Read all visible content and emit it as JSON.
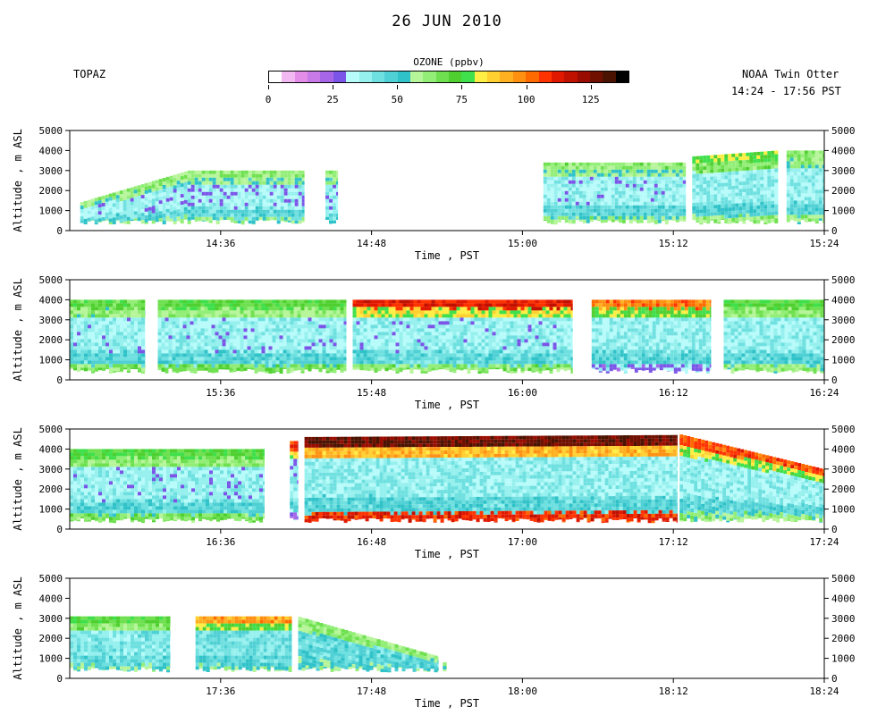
{
  "title": "26 JUN 2010",
  "instrument": "TOPAZ",
  "platform": "NOAA Twin Otter",
  "time_range": "14:24 - 17:56 PST",
  "colorbar": {
    "title": "OZONE (ppbv)",
    "ticks": [
      "0",
      "25",
      "50",
      "75",
      "100",
      "125"
    ],
    "colors": [
      "#ffffff",
      "#f2b8f2",
      "#e38ce8",
      "#c77ae8",
      "#a766e8",
      "#7a55e8",
      "#b7fbfb",
      "#95f0ee",
      "#6fe0e0",
      "#4fd0d4",
      "#2fc2c8",
      "#b7f59a",
      "#93ee78",
      "#6fe050",
      "#4fd030",
      "#3fe04c",
      "#ffee44",
      "#ffd030",
      "#ffb020",
      "#ff9010",
      "#ff6a00",
      "#ff3300",
      "#e01800",
      "#c01000",
      "#9a0c00",
      "#701000",
      "#4a1200",
      "#000000"
    ]
  },
  "chart_data": [
    {
      "type": "heatmap",
      "variable": "Ozone (ppbv)",
      "xlabel": "Time , PST",
      "ylabel": "Altitude , m ASL",
      "xlim": [
        "14:24",
        "15:24"
      ],
      "ylim": [
        0,
        5000
      ],
      "xticks": [
        "14:36",
        "14:48",
        "15:00",
        "15:12",
        "15:24"
      ],
      "yticks": [
        "0",
        "1000",
        "2000",
        "3000",
        "4000",
        "5000"
      ],
      "segments": [
        {
          "start": "14:24:50",
          "end": "14:42:40",
          "top_start": 1400,
          "top_end": 3000,
          "top_mid_time": "14:33:30",
          "surface_ppb": 58,
          "bl_ppb": 45,
          "mid_ppb": 35,
          "top_ppb": 62
        },
        {
          "start": "14:44:20",
          "end": "14:45:20",
          "top_start": 3000,
          "top_end": 3000,
          "surface_ppb": 50,
          "bl_ppb": 40,
          "mid_ppb": 35,
          "top_ppb": 60
        },
        {
          "start": "15:01:40",
          "end": "15:13:00",
          "top_start": 3400,
          "top_end": 3400,
          "surface_ppb": 60,
          "bl_ppb": 46,
          "mid_ppb": 36,
          "top_ppb": 64
        },
        {
          "start": "15:13:30",
          "end": "15:20:20",
          "top_start": 3700,
          "top_end": 4000,
          "surface_ppb": 62,
          "bl_ppb": 48,
          "mid_ppb": 37,
          "top_ppb": 78
        },
        {
          "start": "15:21:00",
          "end": "15:24:00",
          "top_start": 4000,
          "top_end": 4000,
          "surface_ppb": 60,
          "bl_ppb": 46,
          "mid_ppb": 37,
          "top_ppb": 64
        }
      ]
    },
    {
      "type": "heatmap",
      "variable": "Ozone (ppbv)",
      "xlabel": "Time , PST",
      "ylabel": "Altitude , m ASL",
      "xlim": [
        "15:24",
        "16:24"
      ],
      "ylim": [
        0,
        5000
      ],
      "xticks": [
        "15:36",
        "15:48",
        "16:00",
        "16:12",
        "16:24"
      ],
      "yticks": [
        "0",
        "1000",
        "2000",
        "3000",
        "4000",
        "5000"
      ],
      "segments": [
        {
          "start": "15:24:00",
          "end": "15:30:00",
          "top_start": 4000,
          "top_end": 4000,
          "surface_ppb": 65,
          "bl_ppb": 46,
          "mid_ppb": 36,
          "top_ppb": 70
        },
        {
          "start": "15:31:00",
          "end": "15:46:00",
          "top_start": 4000,
          "top_end": 4000,
          "surface_ppb": 66,
          "bl_ppb": 46,
          "mid_ppb": 36,
          "top_ppb": 72
        },
        {
          "start": "15:46:30",
          "end": "16:04:00",
          "top_start": 4000,
          "top_end": 4000,
          "surface_ppb": 64,
          "bl_ppb": 45,
          "mid_ppb": 36,
          "top_ppb": 112
        },
        {
          "start": "16:05:30",
          "end": "16:15:00",
          "top_start": 4000,
          "top_end": 4000,
          "surface_ppb": 30,
          "bl_ppb": 46,
          "mid_ppb": 37,
          "top_ppb": 100
        },
        {
          "start": "16:16:00",
          "end": "16:24:00",
          "top_start": 4000,
          "top_end": 4000,
          "surface_ppb": 60,
          "bl_ppb": 46,
          "mid_ppb": 37,
          "top_ppb": 72
        }
      ]
    },
    {
      "type": "heatmap",
      "variable": "Ozone (ppbv)",
      "xlabel": "Time , PST",
      "ylabel": "Altitude , m ASL",
      "xlim": [
        "16:24",
        "17:24"
      ],
      "ylim": [
        0,
        5000
      ],
      "xticks": [
        "16:36",
        "16:48",
        "17:00",
        "17:12",
        "17:24"
      ],
      "yticks": [
        "0",
        "1000",
        "2000",
        "3000",
        "4000",
        "5000"
      ],
      "segments": [
        {
          "start": "16:24:00",
          "end": "16:39:30",
          "top_start": 4000,
          "top_end": 4000,
          "surface_ppb": 66,
          "bl_ppb": 46,
          "mid_ppb": 36,
          "top_ppb": 72
        },
        {
          "start": "16:41:30",
          "end": "16:42:10",
          "top_start": 4400,
          "top_end": 4400,
          "surface_ppb": 30,
          "bl_ppb": 45,
          "mid_ppb": 36,
          "top_ppb": 110
        },
        {
          "start": "16:42:40",
          "end": "17:12:20",
          "top_start": 4600,
          "top_end": 4700,
          "surface_ppb": 110,
          "bl_ppb": 46,
          "mid_ppb": 38,
          "top_ppb": 128
        },
        {
          "start": "17:12:30",
          "end": "17:24:00",
          "top_start": 4750,
          "top_end": 3000,
          "surface_ppb": 60,
          "bl_ppb": 46,
          "mid_ppb": 37,
          "top_ppb": 105
        }
      ]
    },
    {
      "type": "heatmap",
      "variable": "Ozone (ppbv)",
      "xlabel": "Time , PST",
      "ylabel": "Altitude , m ASL",
      "xlim": [
        "17:24",
        "18:24"
      ],
      "ylim": [
        0,
        5000
      ],
      "xticks": [
        "17:36",
        "17:48",
        "18:00",
        "18:12",
        "18:24"
      ],
      "yticks": [
        "0",
        "1000",
        "2000",
        "3000",
        "4000",
        "5000"
      ],
      "segments": [
        {
          "start": "17:24:00",
          "end": "17:32:00",
          "top_start": 3100,
          "top_end": 3100,
          "surface_ppb": 55,
          "bl_ppb": 44,
          "mid_ppb": 40,
          "top_ppb": 72
        },
        {
          "start": "17:34:00",
          "end": "17:41:40",
          "top_start": 3100,
          "top_end": 3100,
          "surface_ppb": 56,
          "bl_ppb": 46,
          "mid_ppb": 42,
          "top_ppb": 95
        },
        {
          "start": "17:42:10",
          "end": "17:53:20",
          "top_start": 3100,
          "top_end": 1100,
          "surface_ppb": 56,
          "bl_ppb": 50,
          "mid_ppb": 45,
          "top_ppb": 62
        },
        {
          "start": "17:53:40",
          "end": "17:54:00",
          "top_start": 800,
          "top_end": 800,
          "surface_ppb": 58,
          "bl_ppb": 56,
          "mid_ppb": 56,
          "top_ppb": 58
        }
      ]
    }
  ]
}
